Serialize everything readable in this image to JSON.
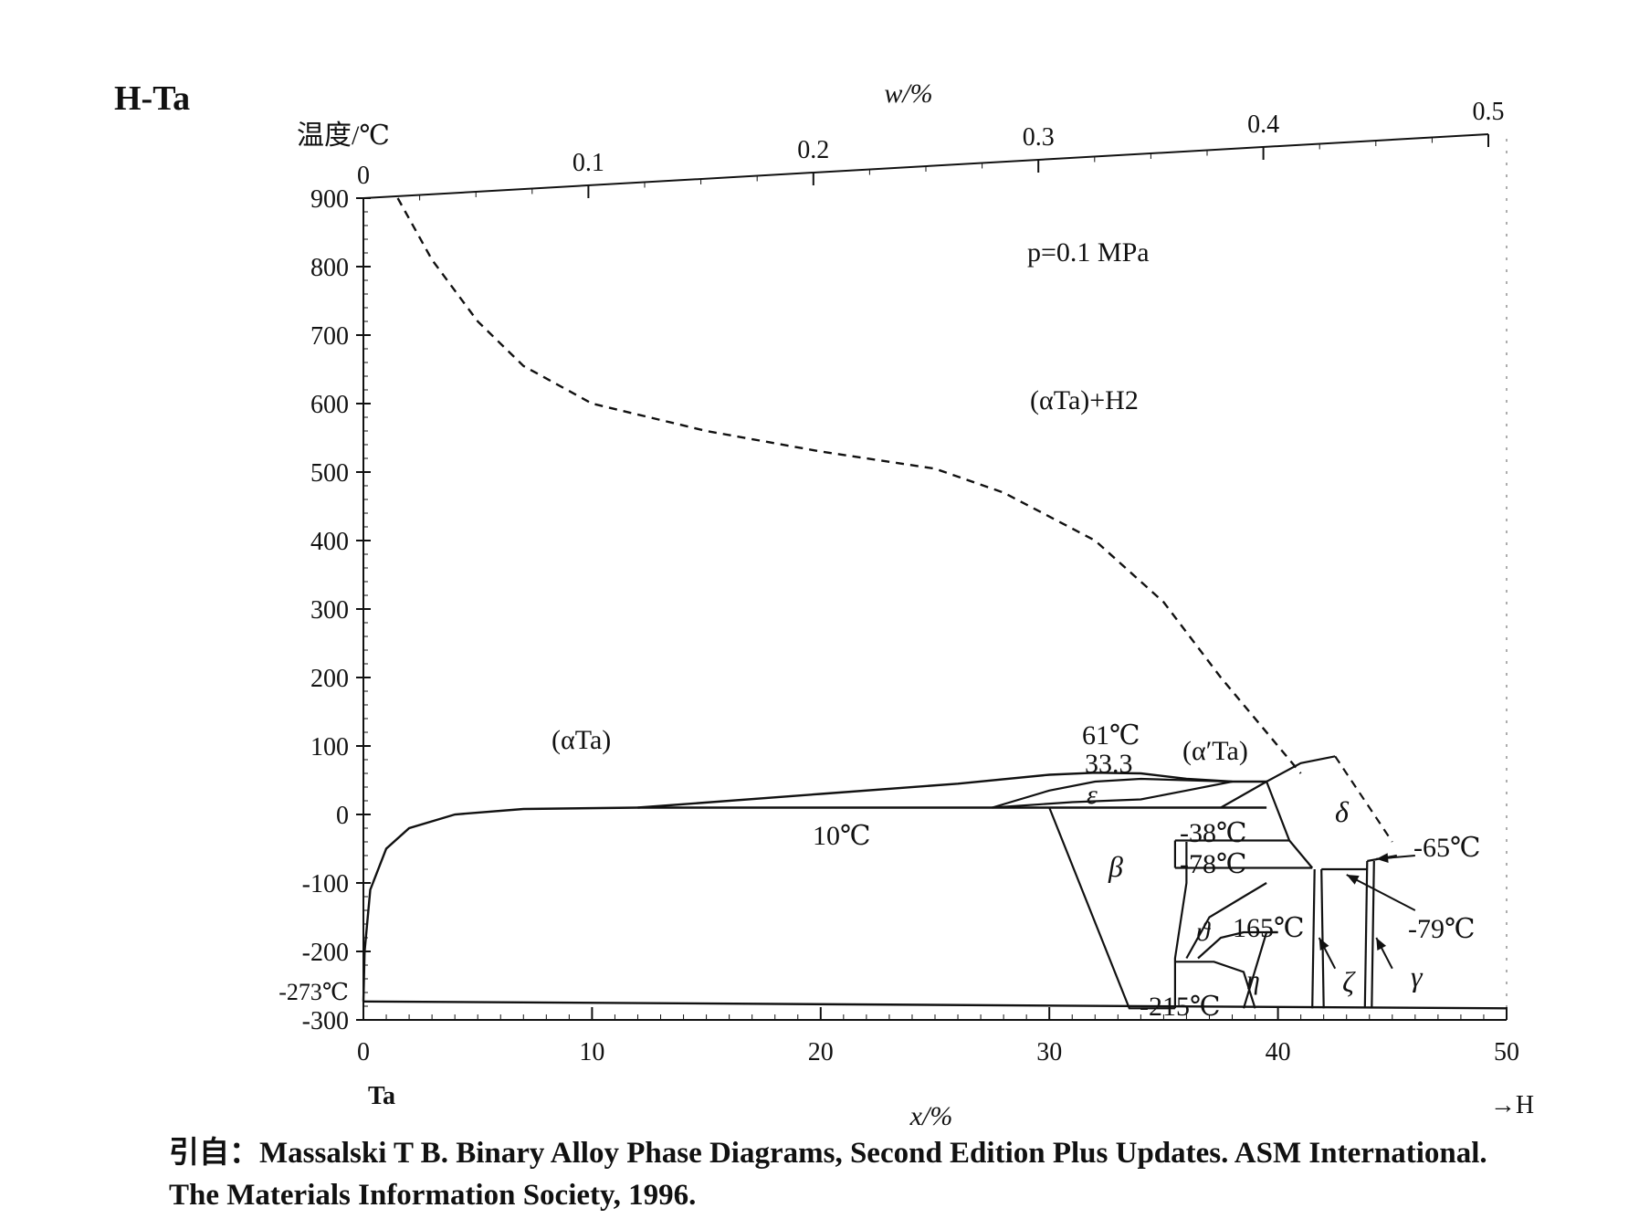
{
  "figure": {
    "title": "H-Ta"
  },
  "chart_data": {
    "type": "line",
    "title": "H-Ta",
    "subtitle": "p=0.1 MPa",
    "ylabel": "温度/℃",
    "xlabel": "x/%",
    "top_xlabel": "w/%",
    "ylim": [
      -300,
      900
    ],
    "xlim": [
      0,
      50
    ],
    "y_ticks": [
      "900",
      "800",
      "700",
      "600",
      "500",
      "400",
      "300",
      "200",
      "100",
      "0",
      "-100",
      "-200",
      "-300"
    ],
    "y_tick_values": [
      900,
      800,
      700,
      600,
      500,
      400,
      300,
      200,
      100,
      0,
      -100,
      -200,
      -300
    ],
    "x_ticks": [
      "0",
      "10",
      "20",
      "30",
      "40",
      "50"
    ],
    "x_tick_values": [
      0,
      10,
      20,
      30,
      40,
      50
    ],
    "top_x_ticks": [
      "0",
      "0.1",
      "0.2",
      "0.3",
      "0.4",
      "0.5"
    ],
    "top_x_tick_values": [
      0,
      0.1,
      0.2,
      0.3,
      0.4,
      0.5
    ],
    "x_left_element": "Ta",
    "x_right_element": "H",
    "extra_y_label": "-273℃",
    "series": [
      {
        "style": "dashed",
        "points": [
          [
            1.5,
            900
          ],
          [
            3,
            810
          ],
          [
            5,
            720
          ],
          [
            7,
            655
          ],
          [
            10,
            600
          ],
          [
            15,
            560
          ],
          [
            20,
            530
          ],
          [
            25,
            505
          ],
          [
            28,
            470
          ],
          [
            32,
            400
          ],
          [
            35,
            310
          ],
          [
            37.5,
            200
          ],
          [
            40,
            100
          ],
          [
            41,
            60
          ]
        ]
      },
      {
        "style": "solid",
        "points": [
          [
            0,
            -273
          ],
          [
            0.05,
            -200
          ],
          [
            0.3,
            -110
          ],
          [
            1,
            -50
          ],
          [
            2,
            -20
          ],
          [
            4,
            0
          ],
          [
            7,
            8
          ],
          [
            12,
            10
          ]
        ]
      },
      {
        "style": "solid",
        "points": [
          [
            12,
            10
          ],
          [
            20,
            30
          ],
          [
            26,
            45
          ],
          [
            30,
            58
          ],
          [
            32,
            61
          ],
          [
            34,
            60
          ],
          [
            36,
            52
          ],
          [
            38,
            48
          ],
          [
            39.5,
            48
          ]
        ]
      },
      {
        "style": "solid",
        "points": [
          [
            12,
            10
          ],
          [
            39.5,
            10
          ]
        ]
      },
      {
        "style": "solid",
        "points": [
          [
            0,
            -273
          ],
          [
            50,
            -283
          ]
        ]
      }
    ],
    "region_labels": [
      "(αTa)",
      "(αTa)+H2",
      "(α′Ta)",
      "ε",
      "β",
      "δ",
      "ϑ",
      "η",
      "ζ",
      "γ"
    ],
    "point_labels": [
      "61℃",
      "33.3",
      "10℃",
      "-38℃",
      "-78℃",
      "165℃",
      "-215℃",
      "-65℃",
      "-79℃"
    ],
    "invariants": [
      {
        "label": "61℃",
        "x": 33.3,
        "y": 61
      },
      {
        "label": "10℃",
        "y": 10
      },
      {
        "label": "-38℃",
        "y": -38
      },
      {
        "label": "-78℃",
        "y": -78
      },
      {
        "label": "-65℃",
        "y": -65
      },
      {
        "label": "-79℃",
        "y": -79
      },
      {
        "label": "-215℃",
        "y": -215
      }
    ],
    "grid": false
  },
  "citation": {
    "line1": "引自：Massalski T B. Binary Alloy Phase Diagrams, Second Edition Plus Updates. ASM International.",
    "line2": "The Materials Information Society, 1996."
  }
}
